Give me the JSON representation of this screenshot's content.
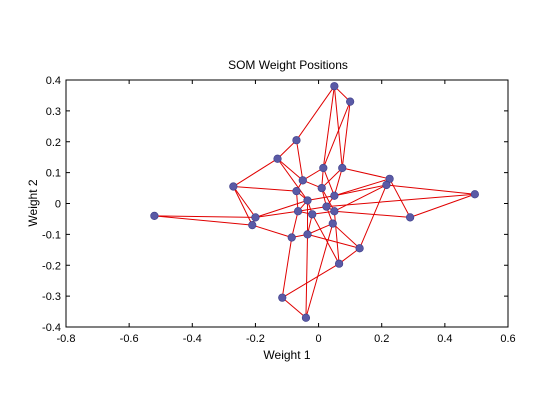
{
  "chart_data": {
    "type": "scatter",
    "title": "SOM Weight Positions",
    "xlabel": "Weight 1",
    "ylabel": "Weight 2",
    "xlim": [
      -0.8,
      0.6
    ],
    "ylim": [
      -0.4,
      0.4
    ],
    "x_ticks": [
      -0.8,
      -0.6,
      -0.4,
      -0.2,
      0,
      0.2,
      0.4,
      0.6
    ],
    "y_ticks": [
      -0.4,
      -0.3,
      -0.2,
      -0.1,
      0,
      0.1,
      0.2,
      0.3,
      0.4
    ],
    "x_tick_labels": [
      "-0.8",
      "-0.6",
      "-0.4",
      "-0.2",
      "0",
      "0.2",
      "0.4",
      "0.6"
    ],
    "y_tick_labels": [
      "-0.4",
      "-0.3",
      "-0.2",
      "-0.1",
      "0",
      "0.1",
      "0.2",
      "0.3",
      "0.4"
    ],
    "grid": false,
    "marker_color": "#5a5aa6",
    "line_color": "#e00000",
    "points": [
      {
        "x": -0.52,
        "y": -0.04
      },
      {
        "x": -0.27,
        "y": 0.055
      },
      {
        "x": -0.2,
        "y": -0.045
      },
      {
        "x": -0.21,
        "y": -0.07
      },
      {
        "x": -0.13,
        "y": 0.145
      },
      {
        "x": -0.07,
        "y": 0.205
      },
      {
        "x": -0.07,
        "y": 0.04
      },
      {
        "x": -0.05,
        "y": 0.075
      },
      {
        "x": -0.035,
        "y": 0.01
      },
      {
        "x": -0.065,
        "y": -0.025
      },
      {
        "x": -0.02,
        "y": -0.035
      },
      {
        "x": -0.085,
        "y": -0.11
      },
      {
        "x": -0.035,
        "y": -0.1
      },
      {
        "x": -0.115,
        "y": -0.305
      },
      {
        "x": -0.04,
        "y": -0.37
      },
      {
        "x": 0.05,
        "y": 0.38
      },
      {
        "x": 0.1,
        "y": 0.33
      },
      {
        "x": 0.015,
        "y": 0.115
      },
      {
        "x": 0.075,
        "y": 0.115
      },
      {
        "x": 0.01,
        "y": 0.05
      },
      {
        "x": 0.05,
        "y": 0.025
      },
      {
        "x": 0.025,
        "y": -0.01
      },
      {
        "x": 0.05,
        "y": -0.025
      },
      {
        "x": 0.045,
        "y": -0.065
      },
      {
        "x": 0.065,
        "y": -0.195
      },
      {
        "x": 0.13,
        "y": -0.145
      },
      {
        "x": 0.225,
        "y": 0.08
      },
      {
        "x": 0.215,
        "y": 0.06
      },
      {
        "x": 0.29,
        "y": -0.045
      },
      {
        "x": 0.495,
        "y": 0.03
      }
    ],
    "edges": [
      [
        0,
        2
      ],
      [
        0,
        3
      ],
      [
        1,
        2
      ],
      [
        1,
        4
      ],
      [
        1,
        6
      ],
      [
        1,
        3
      ],
      [
        2,
        3
      ],
      [
        2,
        8
      ],
      [
        2,
        9
      ],
      [
        3,
        11
      ],
      [
        4,
        5
      ],
      [
        4,
        7
      ],
      [
        4,
        8
      ],
      [
        5,
        7
      ],
      [
        5,
        15
      ],
      [
        6,
        7
      ],
      [
        6,
        8
      ],
      [
        6,
        9
      ],
      [
        7,
        17
      ],
      [
        7,
        19
      ],
      [
        8,
        9
      ],
      [
        8,
        10
      ],
      [
        8,
        12
      ],
      [
        8,
        20
      ],
      [
        9,
        10
      ],
      [
        9,
        11
      ],
      [
        9,
        21
      ],
      [
        10,
        12
      ],
      [
        10,
        22
      ],
      [
        10,
        24
      ],
      [
        11,
        12
      ],
      [
        11,
        13
      ],
      [
        12,
        14
      ],
      [
        12,
        23
      ],
      [
        12,
        25
      ],
      [
        13,
        14
      ],
      [
        13,
        24
      ],
      [
        14,
        23
      ],
      [
        15,
        16
      ],
      [
        15,
        17
      ],
      [
        15,
        18
      ],
      [
        16,
        17
      ],
      [
        16,
        18
      ],
      [
        17,
        19
      ],
      [
        17,
        20
      ],
      [
        18,
        19
      ],
      [
        18,
        26
      ],
      [
        18,
        20
      ],
      [
        19,
        21
      ],
      [
        19,
        22
      ],
      [
        20,
        21
      ],
      [
        20,
        27
      ],
      [
        20,
        26
      ],
      [
        21,
        22
      ],
      [
        21,
        23
      ],
      [
        22,
        27
      ],
      [
        22,
        28
      ],
      [
        22,
        24
      ],
      [
        23,
        25
      ],
      [
        24,
        25
      ],
      [
        25,
        27
      ],
      [
        26,
        27
      ],
      [
        26,
        28
      ],
      [
        27,
        29
      ],
      [
        28,
        29
      ],
      [
        21,
        29
      ]
    ]
  }
}
